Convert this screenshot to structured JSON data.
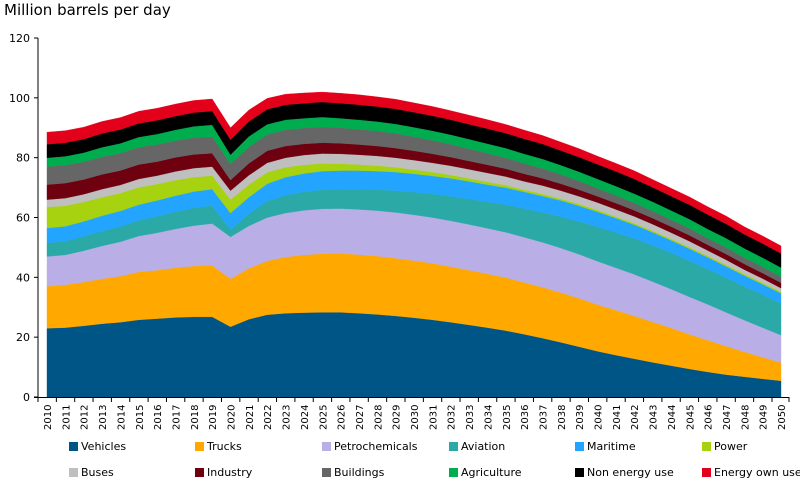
{
  "chart_data": {
    "type": "area",
    "stacked": true,
    "title": "Million barrels per day",
    "xlabel": "",
    "ylabel": "Million barrels per day",
    "ylim": [
      0,
      120
    ],
    "yticks": [
      0,
      20,
      40,
      60,
      80,
      100,
      120
    ],
    "grid": false,
    "legend_position": "bottom",
    "x": [
      2010,
      2011,
      2012,
      2013,
      2014,
      2015,
      2016,
      2017,
      2018,
      2019,
      2020,
      2021,
      2022,
      2023,
      2024,
      2025,
      2026,
      2027,
      2028,
      2029,
      2030,
      2031,
      2032,
      2033,
      2034,
      2035,
      2036,
      2037,
      2038,
      2039,
      2040,
      2041,
      2042,
      2043,
      2044,
      2045,
      2046,
      2047,
      2048,
      2049,
      2050
    ],
    "series": [
      {
        "name": "Vehicles",
        "color": "#005587",
        "values": [
          23,
          23.2,
          23.8,
          24.5,
          25,
          25.8,
          26.2,
          26.6,
          26.8,
          26.8,
          23.5,
          26,
          27.5,
          28,
          28.2,
          28.3,
          28.3,
          28.0,
          27.6,
          27.1,
          26.5,
          25.8,
          25,
          24.1,
          23.2,
          22.2,
          21,
          19.7,
          18.3,
          16.8,
          15.3,
          14,
          12.8,
          11.6,
          10.5,
          9.4,
          8.4,
          7.5,
          6.8,
          6.1,
          5.4
        ]
      },
      {
        "name": "Trucks",
        "color": "#FFA800",
        "values": [
          14,
          14.3,
          14.6,
          15,
          15.4,
          16,
          16.2,
          16.6,
          17,
          17.2,
          16,
          17,
          18,
          18.8,
          19.3,
          19.6,
          19.7,
          19.6,
          19.5,
          19.3,
          19.1,
          18.9,
          18.6,
          18.3,
          18,
          17.7,
          17.3,
          17,
          16.6,
          16.2,
          15.6,
          15,
          14.3,
          13.5,
          12.6,
          11.6,
          10.6,
          9.5,
          8.3,
          7.2,
          6.1
        ]
      },
      {
        "name": "Petrochemicals",
        "color": "#B9AEE6",
        "values": [
          10,
          10,
          10.5,
          11,
          11.5,
          12,
          12.5,
          13,
          13.5,
          14,
          14,
          14.2,
          14.5,
          14.7,
          14.9,
          15,
          15,
          15.1,
          15.2,
          15.3,
          15.3,
          15.3,
          15.3,
          15.3,
          15.2,
          15.2,
          15.1,
          15,
          14.9,
          14.7,
          14.5,
          14.2,
          13.9,
          13.5,
          13,
          12.5,
          12,
          11.3,
          10.6,
          9.9,
          9.2
        ]
      },
      {
        "name": "Aviation",
        "color": "#2BA9A6",
        "values": [
          4.5,
          4.6,
          4.8,
          5,
          5.1,
          5.3,
          5.5,
          5.7,
          5.9,
          6,
          2.5,
          4,
          5.5,
          6,
          6.2,
          6.4,
          6.5,
          6.8,
          7,
          7.3,
          7.6,
          7.9,
          8.2,
          8.5,
          8.8,
          9.2,
          9.6,
          10,
          10.5,
          11,
          11.5,
          11.8,
          12,
          12.1,
          12.1,
          12,
          11.8,
          11.6,
          11.3,
          11,
          10.6
        ]
      },
      {
        "name": "Maritime",
        "color": "#23A5FF",
        "values": [
          5,
          5,
          5,
          5.1,
          5.2,
          5.2,
          5.3,
          5.4,
          5.5,
          5.5,
          5.5,
          5.6,
          5.8,
          6,
          6.1,
          6.2,
          6.2,
          6.2,
          6.2,
          6.2,
          6.1,
          6,
          6,
          5.9,
          5.8,
          5.7,
          5.6,
          5.5,
          5.4,
          5.2,
          5,
          4.8,
          4.6,
          4.4,
          4.2,
          4.1,
          3.9,
          3.8,
          3.6,
          3.5,
          3.4
        ]
      },
      {
        "name": "Power",
        "color": "#A6D20F",
        "values": [
          7,
          6.8,
          6.5,
          6.2,
          6,
          5.8,
          5.5,
          5.2,
          4.8,
          4.5,
          4.5,
          4.2,
          3.8,
          3.3,
          2.9,
          2.6,
          2.3,
          2,
          1.8,
          1.6,
          1.4,
          1.3,
          1.1,
          1,
          0.9,
          0.8,
          0.7,
          0.7,
          0.6,
          0.6,
          0.6,
          0.5,
          0.5,
          0.5,
          0.5,
          0.5,
          0.5,
          0.5,
          0.5,
          0.5,
          0.5
        ]
      },
      {
        "name": "Buses",
        "color": "#BFBFBF",
        "values": [
          2.5,
          2.6,
          2.6,
          2.7,
          2.7,
          2.8,
          2.8,
          2.9,
          3,
          3,
          3,
          3.1,
          3.2,
          3.2,
          3.3,
          3.3,
          3.3,
          3.3,
          3.3,
          3.2,
          3.2,
          3.1,
          3.1,
          3,
          3,
          2.9,
          2.8,
          2.8,
          2.7,
          2.6,
          2.5,
          2.4,
          2.3,
          2.2,
          2.1,
          2,
          1.8,
          1.7,
          1.5,
          1.4,
          1.2
        ]
      },
      {
        "name": "Industry",
        "color": "#6E000F",
        "values": [
          5,
          5,
          4.9,
          4.9,
          4.8,
          4.8,
          4.7,
          4.7,
          4.6,
          4.5,
          3.5,
          4,
          4,
          3.9,
          3.7,
          3.6,
          3.5,
          3.4,
          3.3,
          3.2,
          3.1,
          3,
          2.9,
          2.8,
          2.7,
          2.6,
          2.5,
          2.4,
          2.3,
          2.2,
          2.1,
          2.1,
          2,
          2,
          2,
          2,
          1.9,
          1.9,
          1.9,
          1.8,
          1.8
        ]
      },
      {
        "name": "Buildings",
        "color": "#666666",
        "values": [
          6,
          6,
          5.9,
          5.9,
          5.8,
          5.8,
          5.7,
          5.6,
          5.6,
          5.5,
          5.5,
          5.5,
          5.4,
          5.4,
          5.3,
          5.3,
          5.2,
          5.1,
          5,
          4.9,
          4.7,
          4.5,
          4.3,
          4.1,
          3.9,
          3.7,
          3.5,
          3.3,
          3.1,
          2.9,
          2.7,
          2.6,
          2.5,
          2.4,
          2.3,
          2.3,
          2.2,
          2.2,
          2.1,
          2.1,
          2
        ]
      },
      {
        "name": "Agriculture",
        "color": "#00AD4E",
        "values": [
          3,
          3,
          3.1,
          3.2,
          3.3,
          3.4,
          3.5,
          3.6,
          3.8,
          4,
          3,
          3.5,
          3.5,
          3.4,
          3.3,
          3.3,
          3.2,
          3.2,
          3.2,
          3.2,
          3.2,
          3.2,
          3.2,
          3.2,
          3.2,
          3.2,
          3.2,
          3.2,
          3.1,
          3.1,
          3.1,
          3.1,
          3.1,
          3.1,
          3.1,
          3.1,
          3.1,
          3.1,
          3.1,
          3.1,
          3.1
        ]
      },
      {
        "name": "Non energy use",
        "color": "#000000",
        "values": [
          4.5,
          4.5,
          4.5,
          4.6,
          4.6,
          4.6,
          4.6,
          4.6,
          4.6,
          4.6,
          5,
          5,
          5,
          5,
          5,
          5,
          5,
          5,
          5,
          5,
          5,
          5,
          5,
          5,
          5,
          5,
          5,
          5,
          4.9,
          4.9,
          4.9,
          4.9,
          4.9,
          4.8,
          4.8,
          4.8,
          4.8,
          4.8,
          4.7,
          4.7,
          4.7
        ]
      },
      {
        "name": "Energy own use",
        "color": "#E2001A",
        "values": [
          4,
          4,
          4,
          4,
          4,
          4,
          4,
          4,
          4,
          4,
          4,
          3.8,
          3.6,
          3.5,
          3.4,
          3.3,
          3.3,
          3.3,
          3.2,
          3.2,
          3.1,
          3.1,
          3,
          3,
          3,
          2.9,
          2.9,
          2.8,
          2.8,
          2.8,
          2.7,
          2.7,
          2.7,
          2.6,
          2.6,
          2.6,
          2.6,
          2.6,
          2.5,
          2.5,
          2.5
        ]
      }
    ]
  }
}
